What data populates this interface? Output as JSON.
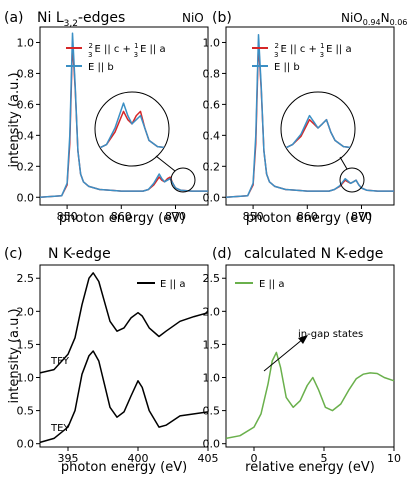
{
  "colors": {
    "red": "#d62728",
    "blue": "#3b8fc4",
    "black": "#000000",
    "green": "#6ab04c"
  },
  "chart_data": [
    {
      "panel_label": "(a)",
      "title": "Ni L",
      "title_sub": "3,2",
      "title_tail": "-edges",
      "sample": "NiO",
      "type": "line",
      "xlabel": "photon energy (eV)",
      "ylabel": "intensity (a.u.)",
      "xlim": [
        845,
        876
      ],
      "ylim": [
        -0.05,
        1.1
      ],
      "xticks": [
        "850",
        "860",
        "870"
      ],
      "yticks": [
        "0.0",
        "0.2",
        "0.4",
        "0.6",
        "0.8",
        "1.0"
      ],
      "legend_position": "top-right",
      "series": [
        {
          "name": "2/3 E || c + 1/3 E || a",
          "legend_text": "E || c + ",
          "legend_text_2": "E || a",
          "color": "red",
          "x": [
            845,
            849,
            850,
            850.5,
            851,
            851.5,
            852,
            852.5,
            853,
            854,
            856,
            858,
            860,
            862,
            864,
            865,
            866,
            867,
            867.5,
            868,
            868.5,
            869,
            869.5,
            870,
            871,
            873,
            876
          ],
          "y": [
            0.0,
            0.01,
            0.08,
            0.35,
            1.0,
            0.7,
            0.3,
            0.15,
            0.1,
            0.07,
            0.05,
            0.045,
            0.04,
            0.04,
            0.04,
            0.05,
            0.08,
            0.13,
            0.11,
            0.1,
            0.12,
            0.13,
            0.09,
            0.06,
            0.045,
            0.04,
            0.04
          ]
        },
        {
          "name": "E || b",
          "legend_text": "E || b",
          "color": "blue",
          "x": [
            845,
            849,
            850,
            850.5,
            851,
            851.5,
            852,
            852.5,
            853,
            854,
            856,
            858,
            860,
            862,
            864,
            865,
            866,
            867,
            867.5,
            868,
            868.5,
            869,
            869.5,
            870,
            871,
            873,
            876
          ],
          "y": [
            0.0,
            0.01,
            0.09,
            0.4,
            1.06,
            0.72,
            0.3,
            0.15,
            0.1,
            0.07,
            0.05,
            0.045,
            0.04,
            0.04,
            0.04,
            0.05,
            0.09,
            0.15,
            0.12,
            0.1,
            0.11,
            0.12,
            0.09,
            0.06,
            0.045,
            0.04,
            0.04
          ]
        }
      ]
    },
    {
      "panel_label": "(b)",
      "sample_main": "NiO",
      "sample_sub1": "0.94",
      "sample_mid": "N",
      "sample_sub2": "0.06",
      "type": "line",
      "xlabel": "photon energy (eV)",
      "xlim": [
        845,
        876
      ],
      "ylim": [
        -0.05,
        1.1
      ],
      "xticks": [
        "850",
        "860",
        "870"
      ],
      "yticks": [
        "0.0",
        "0.2",
        "0.4",
        "0.6",
        "0.8",
        "1.0"
      ],
      "legend_position": "top-right",
      "series": [
        {
          "name": "2/3 E || c + 1/3 E || a",
          "legend_text": "E || c + ",
          "legend_text_2": "E || a",
          "color": "red",
          "x": [
            845,
            849,
            850,
            850.5,
            851,
            851.5,
            852,
            852.5,
            853,
            854,
            856,
            858,
            860,
            862,
            864,
            865,
            866,
            867,
            867.5,
            868,
            868.5,
            869,
            869.5,
            870,
            871,
            873,
            876
          ],
          "y": [
            0.0,
            0.01,
            0.08,
            0.35,
            1.0,
            0.7,
            0.3,
            0.15,
            0.1,
            0.07,
            0.05,
            0.045,
            0.04,
            0.04,
            0.04,
            0.05,
            0.07,
            0.11,
            0.1,
            0.09,
            0.1,
            0.11,
            0.08,
            0.06,
            0.045,
            0.04,
            0.04
          ]
        },
        {
          "name": "E || b",
          "legend_text": "E || b",
          "color": "blue",
          "x": [
            845,
            849,
            850,
            850.5,
            851,
            851.5,
            852,
            852.5,
            853,
            854,
            856,
            858,
            860,
            862,
            864,
            865,
            866,
            867,
            867.5,
            868,
            868.5,
            869,
            869.5,
            870,
            871,
            873,
            876
          ],
          "y": [
            0.0,
            0.01,
            0.09,
            0.4,
            1.05,
            0.72,
            0.3,
            0.15,
            0.1,
            0.07,
            0.05,
            0.045,
            0.04,
            0.04,
            0.04,
            0.05,
            0.075,
            0.12,
            0.105,
            0.09,
            0.1,
            0.11,
            0.08,
            0.06,
            0.045,
            0.04,
            0.04
          ]
        }
      ]
    },
    {
      "panel_label": "(c)",
      "title": "N K-edge",
      "type": "line",
      "xlabel": "photon energy (eV)",
      "ylabel": "intensity (a.u.)",
      "xlim": [
        393,
        405
      ],
      "ylim": [
        -0.05,
        2.7
      ],
      "xticks": [
        "395",
        "400",
        "405"
      ],
      "yticks": [
        "0.0",
        "0.5",
        "1.0",
        "1.5",
        "2.0",
        "2.5"
      ],
      "legend_position": "top-right",
      "annotations": [
        "TFY",
        "TEY"
      ],
      "series": [
        {
          "name": "E || a",
          "color": "black",
          "label": "TFY",
          "x": [
            393,
            394,
            395,
            395.5,
            396,
            396.5,
            396.8,
            397.2,
            397.6,
            398,
            398.5,
            399,
            399.5,
            400,
            400.3,
            400.8,
            401.5,
            402,
            403,
            404,
            405
          ],
          "y": [
            1.07,
            1.12,
            1.35,
            1.6,
            2.1,
            2.5,
            2.58,
            2.45,
            2.15,
            1.85,
            1.7,
            1.75,
            1.9,
            1.98,
            1.93,
            1.75,
            1.62,
            1.7,
            1.85,
            1.92,
            1.98
          ]
        },
        {
          "name": "E || a",
          "color": "black",
          "label": "TEY",
          "x": [
            393,
            394,
            395,
            395.5,
            396,
            396.5,
            396.8,
            397.2,
            397.6,
            398,
            398.5,
            399,
            399.5,
            400,
            400.3,
            400.8,
            401.5,
            402,
            403,
            404,
            405
          ],
          "y": [
            0.02,
            0.08,
            0.25,
            0.5,
            1.05,
            1.33,
            1.4,
            1.25,
            0.9,
            0.55,
            0.4,
            0.48,
            0.72,
            0.95,
            0.85,
            0.5,
            0.25,
            0.28,
            0.42,
            0.45,
            0.48
          ]
        }
      ]
    },
    {
      "panel_label": "(d)",
      "title": "calculated N K-edge",
      "type": "line",
      "xlabel": "relative energy (eV)",
      "xlim": [
        -2,
        10
      ],
      "ylim": [
        -0.05,
        2.7
      ],
      "xticks": [
        "0",
        "5",
        "10"
      ],
      "yticks": [
        "0.0",
        "0.5",
        "1.0",
        "1.5",
        "2.0",
        "2.5"
      ],
      "legend_position": "top-left",
      "annotations": [
        "in-gap states"
      ],
      "series": [
        {
          "name": "E || a",
          "color": "green",
          "x": [
            -2,
            -1,
            0,
            0.5,
            1,
            1.3,
            1.6,
            1.9,
            2.3,
            2.8,
            3.3,
            3.8,
            4.2,
            4.6,
            5.1,
            5.6,
            6.2,
            6.8,
            7.3,
            7.8,
            8.3,
            8.8,
            9.3,
            10
          ],
          "y": [
            0.08,
            0.12,
            0.25,
            0.45,
            0.9,
            1.25,
            1.38,
            1.15,
            0.7,
            0.55,
            0.65,
            0.88,
            1.0,
            0.82,
            0.55,
            0.5,
            0.6,
            0.82,
            0.98,
            1.05,
            1.07,
            1.06,
            1.0,
            0.95
          ]
        }
      ]
    }
  ]
}
